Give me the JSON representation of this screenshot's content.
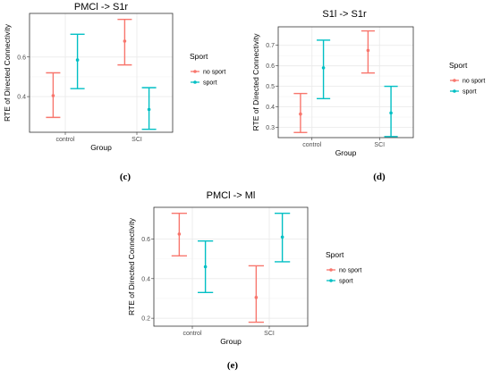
{
  "colors": {
    "no_sport": "#f8766d",
    "sport": "#00bfc4",
    "panel_bg": "#ffffff",
    "grid": "#ebebeb",
    "border": "#333333"
  },
  "legend": {
    "title": "Sport",
    "entries": [
      "no sport",
      "sport"
    ]
  },
  "chart_data": [
    {
      "type": "errorbar",
      "caption": "(c)",
      "title": "PMCl -> S1r",
      "xlabel": "Group",
      "ylabel": "RTE of Directed Connectivity",
      "categories": [
        "control",
        "SCI"
      ],
      "yticks": [
        0.4,
        0.6
      ],
      "ylim": [
        0.22,
        0.82
      ],
      "grid": true,
      "legend_position": "right",
      "series": [
        {
          "name": "no sport",
          "color": "#f8766d",
          "mean": [
            0.405,
            0.68
          ],
          "lower": [
            0.295,
            0.56
          ],
          "upper": [
            0.52,
            0.79
          ]
        },
        {
          "name": "sport",
          "color": "#00bfc4",
          "mean": [
            0.585,
            0.335
          ],
          "lower": [
            0.44,
            0.235
          ],
          "upper": [
            0.715,
            0.445
          ]
        }
      ]
    },
    {
      "type": "errorbar",
      "caption": "(d)",
      "title": "S1l -> S1r",
      "xlabel": "Group",
      "ylabel": "RTE of Directed Connectivity",
      "categories": [
        "control",
        "SCI"
      ],
      "yticks": [
        0.3,
        0.4,
        0.5,
        0.6,
        0.7
      ],
      "ylim": [
        0.25,
        0.79
      ],
      "grid": true,
      "legend_position": "right",
      "series": [
        {
          "name": "no sport",
          "color": "#f8766d",
          "mean": [
            0.365,
            0.675
          ],
          "lower": [
            0.275,
            0.565
          ],
          "upper": [
            0.465,
            0.77
          ]
        },
        {
          "name": "sport",
          "color": "#00bfc4",
          "mean": [
            0.59,
            0.37
          ],
          "lower": [
            0.44,
            0.255
          ],
          "upper": [
            0.725,
            0.5
          ]
        }
      ]
    },
    {
      "type": "errorbar",
      "caption": "(e)",
      "title": "PMCl -> Ml",
      "xlabel": "Group",
      "ylabel": "RTE of Directed Connectivity",
      "categories": [
        "control",
        "SCI"
      ],
      "yticks": [
        0.2,
        0.4,
        0.6
      ],
      "ylim": [
        0.16,
        0.76
      ],
      "grid": true,
      "legend_position": "right",
      "series": [
        {
          "name": "no sport",
          "color": "#f8766d",
          "mean": [
            0.625,
            0.305
          ],
          "lower": [
            0.515,
            0.18
          ],
          "upper": [
            0.73,
            0.465
          ]
        },
        {
          "name": "sport",
          "color": "#00bfc4",
          "mean": [
            0.46,
            0.61
          ],
          "lower": [
            0.33,
            0.485
          ],
          "upper": [
            0.59,
            0.73
          ]
        }
      ]
    }
  ]
}
